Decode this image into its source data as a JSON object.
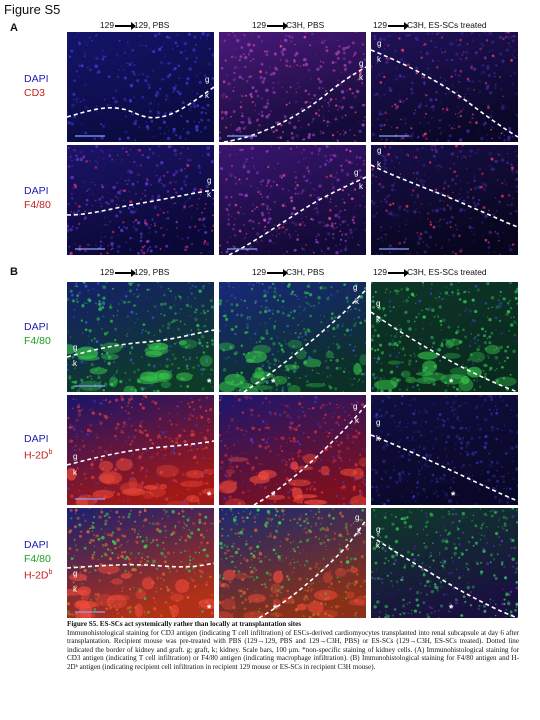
{
  "figure_title": "Figure S5",
  "panel_a": {
    "letter": "A",
    "columns": [
      {
        "src": "129",
        "dst": "129, PBS"
      },
      {
        "src": "129",
        "dst": "C3H, PBS"
      },
      {
        "src": "129",
        "dst": "C3H, ES-SCs treated"
      }
    ],
    "rows": [
      {
        "line1": "DAPI",
        "line2": "CD3"
      },
      {
        "line1": "DAPI",
        "line2": "F4/80"
      }
    ]
  },
  "panel_b": {
    "letter": "B",
    "columns": [
      {
        "src": "129",
        "dst": "129, PBS"
      },
      {
        "src": "129",
        "dst": "C3H, PBS"
      },
      {
        "src": "129",
        "dst": "C3H, ES-SCs treated"
      }
    ],
    "rows": [
      {
        "line1": "DAPI",
        "line2": "F4/80"
      },
      {
        "line1": "DAPI",
        "line2": "H-2D",
        "sup": "b"
      },
      {
        "line1": "DAPI",
        "line2": "F4/80",
        "line3": "H-2D",
        "sup": "b"
      }
    ]
  },
  "tile_labels": {
    "graft": "g",
    "kidney": "k",
    "star": "*"
  },
  "colors": {
    "dapi": "#1d1db5",
    "cd3": "#c41e1e",
    "f4_80": "#1f9d1f",
    "h2db": "#c41e1e"
  },
  "caption": {
    "title": "Figure S5. ES-SCs act systemically rather than locally at transplantation sites",
    "body": "Immunohistological staining for CD3 antigen (indicating T cell infiltration) of ESCs-derived cardiomyocytes transplanted into renal subcapsule at day 6 after transplantation. Recipient mouse was pre-treated with PBS (129→129, PBS and 129→C3H, PBS) or ES-SCs (129→C3H, ES-SCs treated). Dotted line indicated the border of kidney and graft. g; graft, k; kidney. Scale bars, 100 μm. *non-specific staining of kidney cells. (A) Immunohistological staining for CD3 antigen (indicating T cell infiltration) or F4/80 antigen (indicating macrophage infiltration). (B) Immunohistological staining for F4/80 antigen and H-2Dᵇ antigen (indicating recipient cell infiltration in recipient 129 mouse or ES-SCs in recipient C3H mouse)."
  }
}
